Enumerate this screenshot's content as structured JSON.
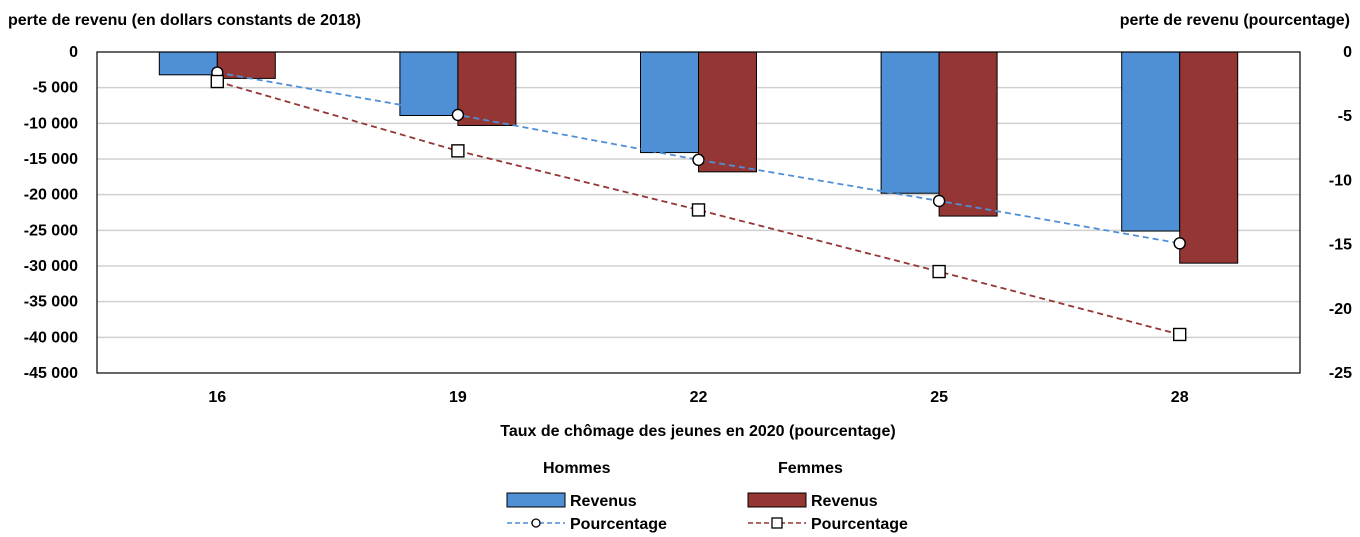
{
  "chart_data": {
    "type": "bar",
    "left_axis_title": "perte de revenu (en dollars constants de 2018)",
    "right_axis_title": "perte de revenu (pourcentage)",
    "xlabel": "Taux de chômage des jeunes en 2020 (pourcentage)",
    "categories": [
      "16",
      "19",
      "22",
      "25",
      "28"
    ],
    "ylim_left": [
      -45000,
      0
    ],
    "ylim_right": [
      -25,
      0
    ],
    "left_ticks": [
      0,
      -5000,
      -10000,
      -15000,
      -20000,
      -25000,
      -30000,
      -35000,
      -40000,
      -45000
    ],
    "left_tick_labels": [
      "0",
      "-5 000",
      "-10 000",
      "-15 000",
      "-20 000",
      "-25 000",
      "-30 000",
      "-35 000",
      "-40 000",
      "-45 000"
    ],
    "right_ticks": [
      0,
      -5,
      -10,
      -15,
      -20,
      -25
    ],
    "right_tick_labels": [
      "0",
      "-5",
      "-10",
      "-15",
      "-20",
      "-25"
    ],
    "grid": true,
    "legend": {
      "position": "bottom",
      "group_men": "Hommes",
      "group_women": "Femmes",
      "revenue_label": "Revenus",
      "percentage_label": "Pourcentage"
    },
    "series": [
      {
        "group": "men",
        "kind": "bar",
        "axis": "left",
        "color": "#4f8fd6",
        "values": [
          -3200,
          -8900,
          -14100,
          -19800,
          -25100
        ]
      },
      {
        "group": "women",
        "kind": "bar",
        "axis": "left",
        "color": "#943634",
        "values": [
          -3700,
          -10300,
          -16800,
          -23000,
          -29600
        ]
      },
      {
        "group": "men",
        "kind": "line",
        "axis": "right",
        "color": "#4f8fd6",
        "marker": "circle",
        "values": [
          -1.6,
          -4.9,
          -8.4,
          -11.6,
          -14.9
        ]
      },
      {
        "group": "women",
        "kind": "line",
        "axis": "right",
        "color": "#943634",
        "marker": "square",
        "values": [
          -2.3,
          -7.7,
          -12.3,
          -17.1,
          -22.0
        ]
      }
    ]
  }
}
